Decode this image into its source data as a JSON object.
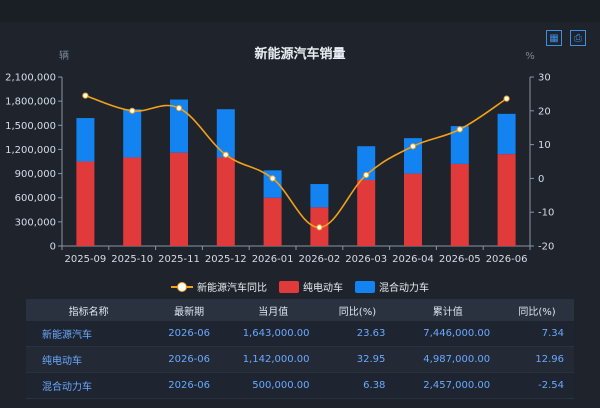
{
  "toolbar": {
    "icons": [
      "data-view-icon",
      "save-image-icon"
    ]
  },
  "chart_data": {
    "type": "bar",
    "title": "新能源汽车销量",
    "ylabel_left": "辆",
    "ylabel_right": "%",
    "categories": [
      "2025-09",
      "2025-10",
      "2025-11",
      "2025-12",
      "2026-01",
      "2026-02",
      "2026-03",
      "2026-04",
      "2026-05",
      "2026-06"
    ],
    "y_left_ticks": [
      "0",
      "300,000",
      "600,000",
      "900,000",
      "1,200,000",
      "1,500,000",
      "1,800,000",
      "2,100,000"
    ],
    "y_right_ticks": [
      "30",
      "20",
      "10",
      "0",
      "-10",
      "-20"
    ],
    "ylim_left": [
      0,
      2100000
    ],
    "ylim_right": [
      -20,
      30
    ],
    "stacked": true,
    "series": [
      {
        "name": "纯电动车",
        "type": "bar",
        "color": "#e03a3a",
        "values": [
          1050000,
          1100000,
          1160000,
          1100000,
          600000,
          480000,
          820000,
          900000,
          1020000,
          1142000
        ]
      },
      {
        "name": "混合动力车",
        "type": "bar",
        "color": "#1283f0",
        "values": [
          540000,
          600000,
          660000,
          600000,
          340000,
          290000,
          420000,
          440000,
          470000,
          500000
        ]
      },
      {
        "name": "新能源汽车同比",
        "type": "line",
        "color": "#f3a01a",
        "axis": "right",
        "values": [
          24.5,
          20,
          20.8,
          7,
          0,
          -14.5,
          1,
          9.5,
          14.5,
          23.6
        ]
      }
    ],
    "legend_position": "bottom"
  },
  "table": {
    "headers": [
      "指标名称",
      "最新期",
      "当月值",
      "同比(%)",
      "累计值",
      "同比(%)"
    ],
    "rows": [
      [
        "新能源汽车",
        "2026-06",
        "1,643,000.00",
        "23.63",
        "7,446,000.00",
        "7.34"
      ],
      [
        "纯电动车",
        "2026-06",
        "1,142,000.00",
        "32.95",
        "4,987,000.00",
        "12.96"
      ],
      [
        "混合动力车",
        "2026-06",
        "500,000.00",
        "6.38",
        "2,457,000.00",
        "-2.54"
      ]
    ]
  }
}
